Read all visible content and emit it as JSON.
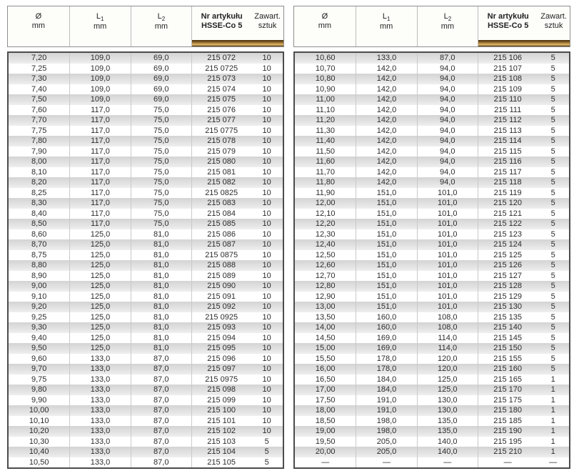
{
  "columns": {
    "c1": {
      "top": "Ø",
      "bottom": "mm"
    },
    "c2": {
      "top": "L",
      "sub": "1",
      "bottom": "mm"
    },
    "c3": {
      "top": "L",
      "sub": "2",
      "bottom": "mm"
    },
    "c4": {
      "top": "Nr artykułu",
      "bottom": "HSSE-Co 5"
    },
    "c5": {
      "top": "Zawart.",
      "bottom": "sztuk"
    }
  },
  "tables": [
    {
      "rows": [
        [
          "7,20",
          "109,0",
          "69,0",
          "215 072",
          "10"
        ],
        [
          "7,25",
          "109,0",
          "69,0",
          "215 0725",
          "10"
        ],
        [
          "7,30",
          "109,0",
          "69,0",
          "215 073",
          "10"
        ],
        [
          "7,40",
          "109,0",
          "69,0",
          "215 074",
          "10"
        ],
        [
          "7,50",
          "109,0",
          "69,0",
          "215 075",
          "10"
        ],
        [
          "7,60",
          "117,0",
          "75,0",
          "215 076",
          "10"
        ],
        [
          "7,70",
          "117,0",
          "75,0",
          "215 077",
          "10"
        ],
        [
          "7,75",
          "117,0",
          "75,0",
          "215 0775",
          "10"
        ],
        [
          "7,80",
          "117,0",
          "75,0",
          "215 078",
          "10"
        ],
        [
          "7,90",
          "117,0",
          "75,0",
          "215 079",
          "10"
        ],
        [
          "8,00",
          "117,0",
          "75,0",
          "215 080",
          "10"
        ],
        [
          "8,10",
          "117,0",
          "75,0",
          "215 081",
          "10"
        ],
        [
          "8,20",
          "117,0",
          "75,0",
          "215 082",
          "10"
        ],
        [
          "8,25",
          "117,0",
          "75,0",
          "215 0825",
          "10"
        ],
        [
          "8,30",
          "117,0",
          "75,0",
          "215 083",
          "10"
        ],
        [
          "8,40",
          "117,0",
          "75,0",
          "215 084",
          "10"
        ],
        [
          "8,50",
          "117,0",
          "75,0",
          "215 085",
          "10"
        ],
        [
          "8,60",
          "125,0",
          "81,0",
          "215 086",
          "10"
        ],
        [
          "8,70",
          "125,0",
          "81,0",
          "215 087",
          "10"
        ],
        [
          "8,75",
          "125,0",
          "81,0",
          "215 0875",
          "10"
        ],
        [
          "8,80",
          "125,0",
          "81,0",
          "215 088",
          "10"
        ],
        [
          "8,90",
          "125,0",
          "81,0",
          "215 089",
          "10"
        ],
        [
          "9,00",
          "125,0",
          "81,0",
          "215 090",
          "10"
        ],
        [
          "9,10",
          "125,0",
          "81,0",
          "215 091",
          "10"
        ],
        [
          "9,20",
          "125,0",
          "81,0",
          "215 092",
          "10"
        ],
        [
          "9,25",
          "125,0",
          "81,0",
          "215 0925",
          "10"
        ],
        [
          "9,30",
          "125,0",
          "81,0",
          "215 093",
          "10"
        ],
        [
          "9,40",
          "125,0",
          "81,0",
          "215 094",
          "10"
        ],
        [
          "9,50",
          "125,0",
          "81,0",
          "215 095",
          "10"
        ],
        [
          "9,60",
          "133,0",
          "87,0",
          "215 096",
          "10"
        ],
        [
          "9,70",
          "133,0",
          "87,0",
          "215 097",
          "10"
        ],
        [
          "9,75",
          "133,0",
          "87,0",
          "215 0975",
          "10"
        ],
        [
          "9,80",
          "133,0",
          "87,0",
          "215 098",
          "10"
        ],
        [
          "9,90",
          "133,0",
          "87,0",
          "215 099",
          "10"
        ],
        [
          "10,00",
          "133,0",
          "87,0",
          "215 100",
          "10"
        ],
        [
          "10,10",
          "133,0",
          "87,0",
          "215 101",
          "10"
        ],
        [
          "10,20",
          "133,0",
          "87,0",
          "215 102",
          "10"
        ],
        [
          "10,30",
          "133,0",
          "87,0",
          "215 103",
          "5"
        ],
        [
          "10,40",
          "133,0",
          "87,0",
          "215 104",
          "5"
        ],
        [
          "10,50",
          "133,0",
          "87,0",
          "215 105",
          "5"
        ]
      ]
    },
    {
      "rows": [
        [
          "10,60",
          "133,0",
          "87,0",
          "215 106",
          "5"
        ],
        [
          "10,70",
          "142,0",
          "94,0",
          "215 107",
          "5"
        ],
        [
          "10,80",
          "142,0",
          "94,0",
          "215 108",
          "5"
        ],
        [
          "10,90",
          "142,0",
          "94,0",
          "215 109",
          "5"
        ],
        [
          "11,00",
          "142,0",
          "94,0",
          "215 110",
          "5"
        ],
        [
          "11,10",
          "142,0",
          "94,0",
          "215 111",
          "5"
        ],
        [
          "11,20",
          "142,0",
          "94,0",
          "215 112",
          "5"
        ],
        [
          "11,30",
          "142,0",
          "94,0",
          "215 113",
          "5"
        ],
        [
          "11,40",
          "142,0",
          "94,0",
          "215 114",
          "5"
        ],
        [
          "11,50",
          "142,0",
          "94,0",
          "215 115",
          "5"
        ],
        [
          "11,60",
          "142,0",
          "94,0",
          "215 116",
          "5"
        ],
        [
          "11,70",
          "142,0",
          "94,0",
          "215 117",
          "5"
        ],
        [
          "11,80",
          "142,0",
          "94,0",
          "215 118",
          "5"
        ],
        [
          "11,90",
          "151,0",
          "101,0",
          "215 119",
          "5"
        ],
        [
          "12,00",
          "151,0",
          "101,0",
          "215 120",
          "5"
        ],
        [
          "12,10",
          "151,0",
          "101,0",
          "215 121",
          "5"
        ],
        [
          "12,20",
          "151,0",
          "101,0",
          "215 122",
          "5"
        ],
        [
          "12,30",
          "151,0",
          "101,0",
          "215 123",
          "5"
        ],
        [
          "12,40",
          "151,0",
          "101,0",
          "215 124",
          "5"
        ],
        [
          "12,50",
          "151,0",
          "101,0",
          "215 125",
          "5"
        ],
        [
          "12,60",
          "151,0",
          "101,0",
          "215 126",
          "5"
        ],
        [
          "12,70",
          "151,0",
          "101,0",
          "215 127",
          "5"
        ],
        [
          "12,80",
          "151,0",
          "101,0",
          "215 128",
          "5"
        ],
        [
          "12,90",
          "151,0",
          "101,0",
          "215 129",
          "5"
        ],
        [
          "13,00",
          "151,0",
          "101,0",
          "215 130",
          "5"
        ],
        [
          "13,50",
          "160,0",
          "108,0",
          "215 135",
          "5"
        ],
        [
          "14,00",
          "160,0",
          "108,0",
          "215 140",
          "5"
        ],
        [
          "14,50",
          "169,0",
          "114,0",
          "215 145",
          "5"
        ],
        [
          "15,00",
          "169,0",
          "114,0",
          "215 150",
          "5"
        ],
        [
          "15,50",
          "178,0",
          "120,0",
          "215 155",
          "5"
        ],
        [
          "16,00",
          "178,0",
          "120,0",
          "215 160",
          "5"
        ],
        [
          "16,50",
          "184,0",
          "125,0",
          "215 165",
          "1"
        ],
        [
          "17,00",
          "184,0",
          "125,0",
          "215 170",
          "1"
        ],
        [
          "17,50",
          "191,0",
          "130,0",
          "215 175",
          "1"
        ],
        [
          "18,00",
          "191,0",
          "130,0",
          "215 180",
          "1"
        ],
        [
          "18,50",
          "198,0",
          "135,0",
          "215 185",
          "1"
        ],
        [
          "19,00",
          "198,0",
          "135,0",
          "215 190",
          "1"
        ],
        [
          "19,50",
          "205,0",
          "140,0",
          "215 195",
          "1"
        ],
        [
          "20,00",
          "205,0",
          "140,0",
          "215 210",
          "1"
        ],
        [
          "—",
          "—",
          "—",
          "—",
          "—"
        ]
      ]
    }
  ]
}
